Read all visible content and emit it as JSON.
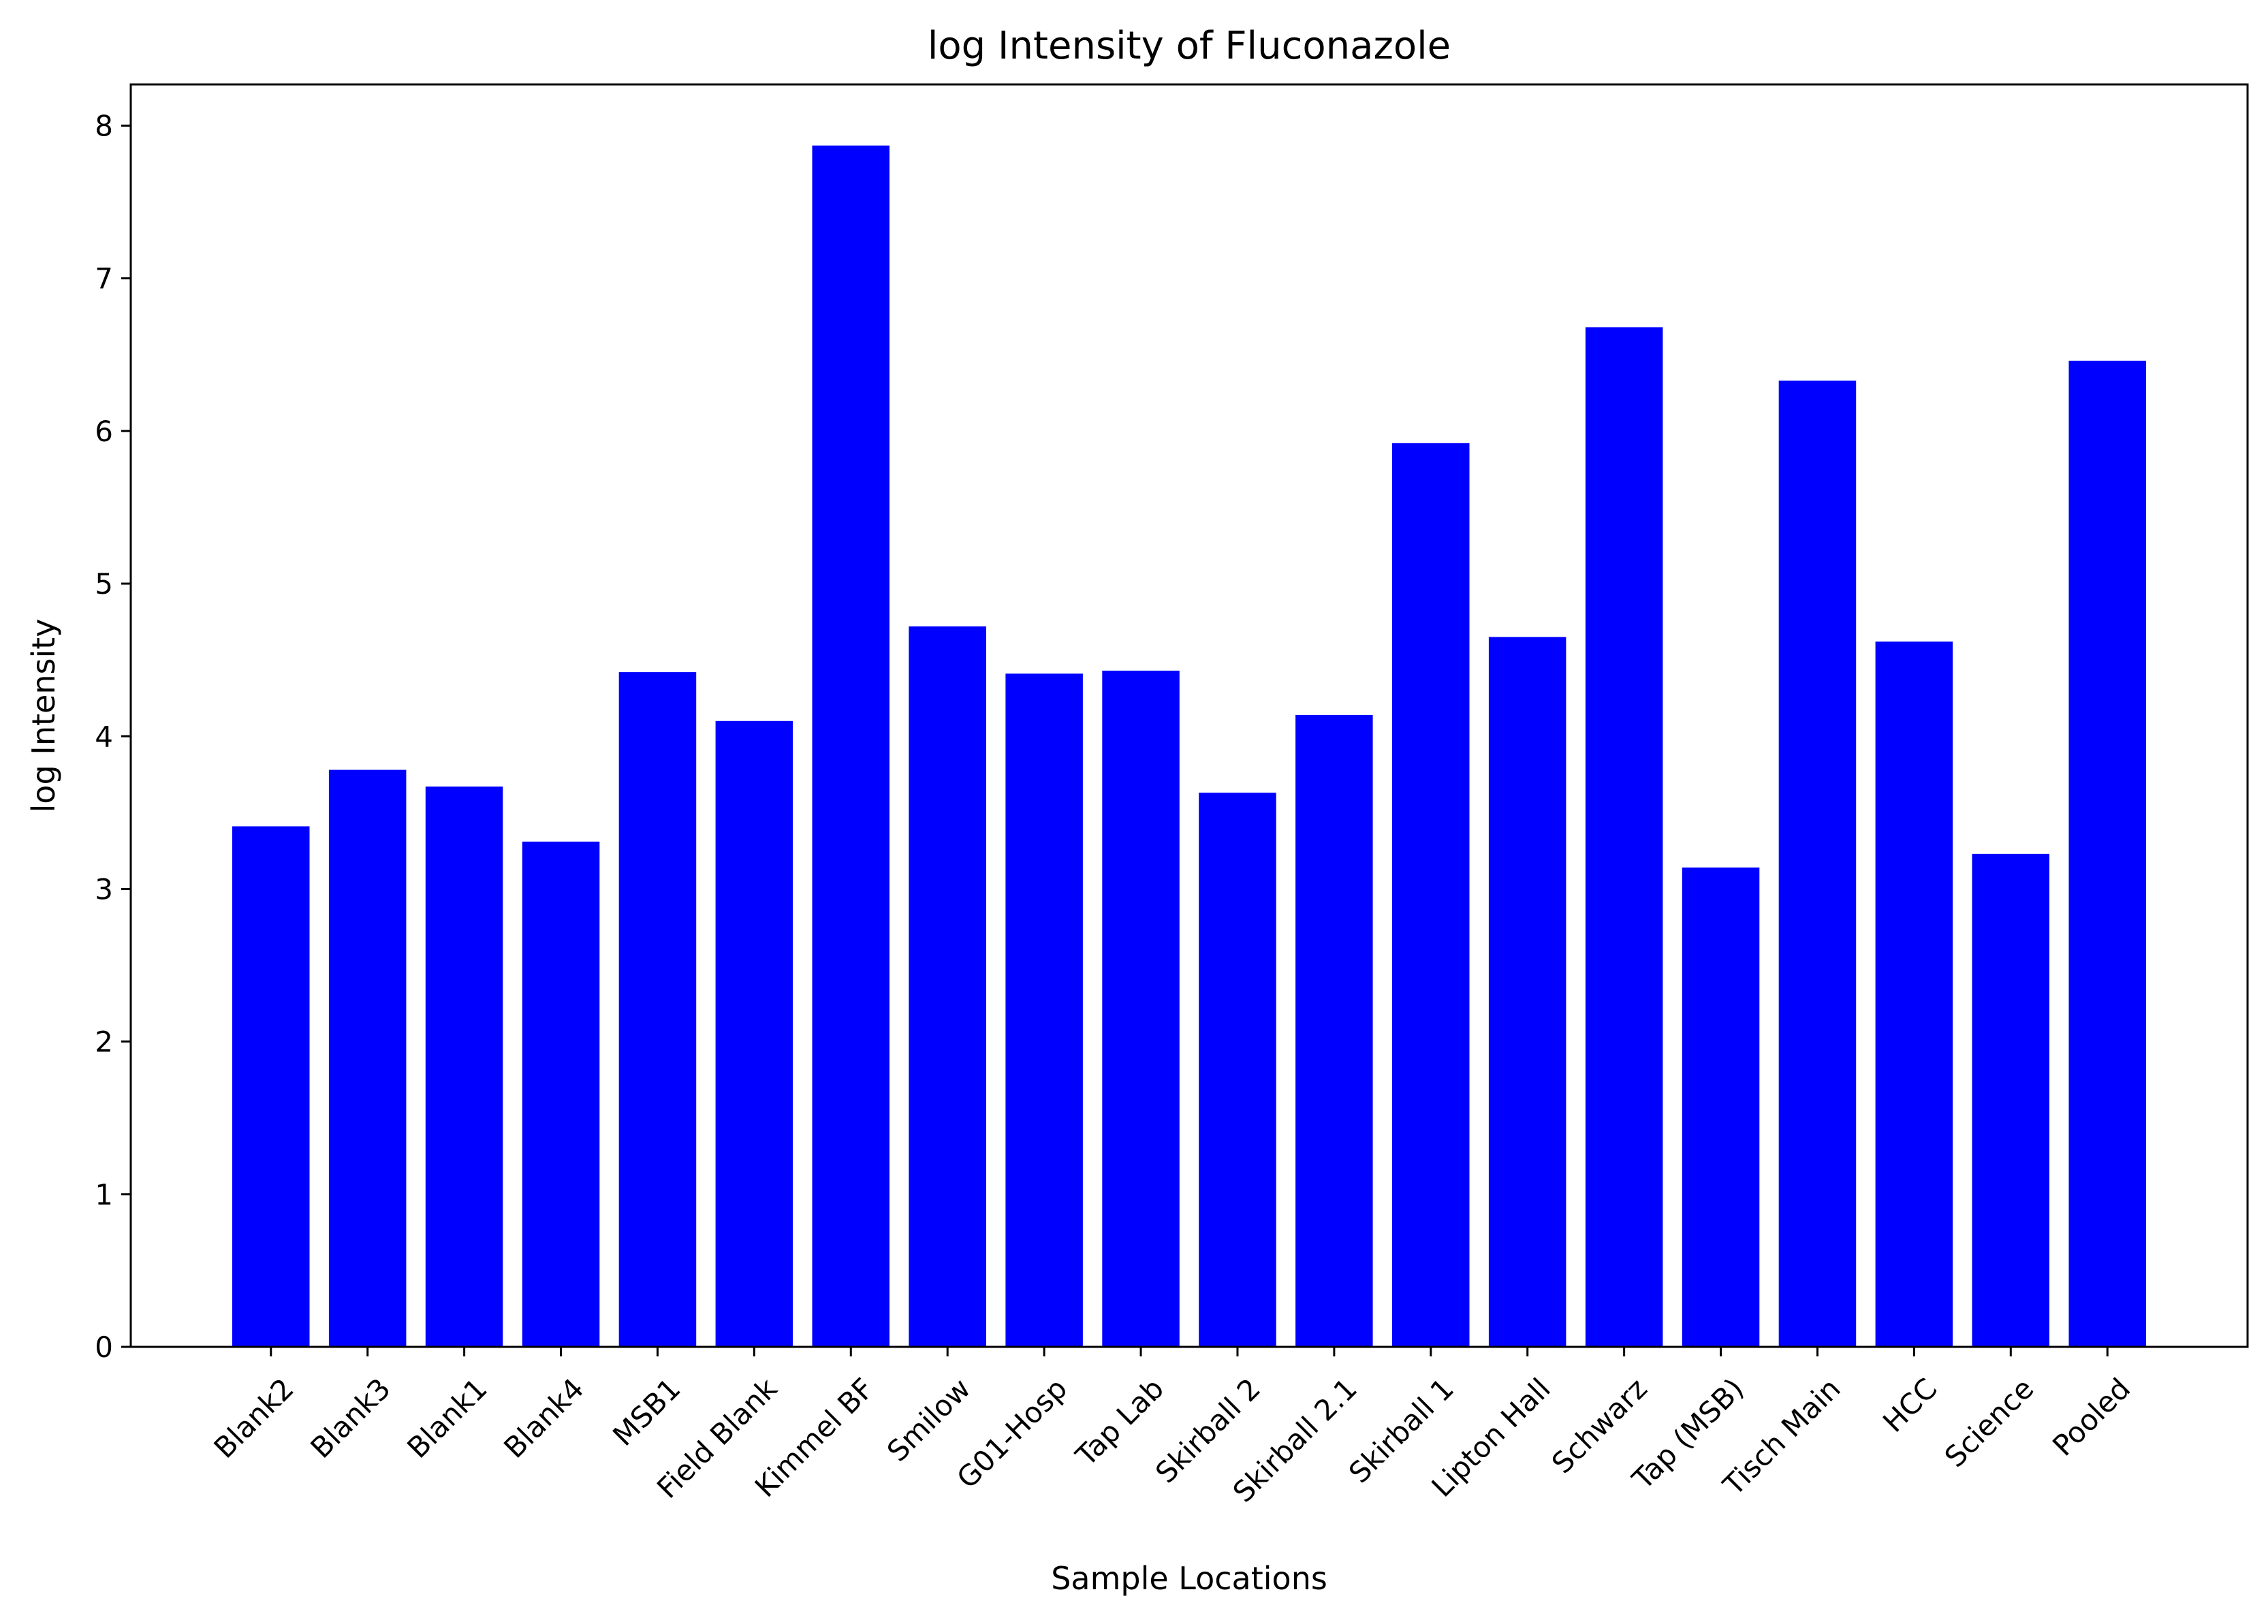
{
  "chart_data": {
    "type": "bar",
    "title": "log Intensity of Fluconazole",
    "xlabel": "Sample Locations",
    "ylabel": "log Intensity",
    "categories": [
      "Blank2",
      "Blank3",
      "Blank1",
      "Blank4",
      "MSB1",
      "Field Blank",
      "Kimmel BF",
      "Smilow",
      "G01-Hosp",
      "Tap Lab",
      "Skirball 2",
      "Skirball 2.1",
      "Skirball 1",
      "Lipton Hall",
      "Schwarz",
      "Tap (MSB)",
      "Tisch Main",
      "HCC",
      "Science",
      "Pooled"
    ],
    "values": [
      3.41,
      3.78,
      3.67,
      3.31,
      4.42,
      4.1,
      7.87,
      4.72,
      4.41,
      4.43,
      3.63,
      4.14,
      5.92,
      4.65,
      6.68,
      3.14,
      6.33,
      4.62,
      3.23,
      6.46
    ],
    "ylim": [
      0,
      8.27
    ],
    "yticks": [
      "0",
      "1",
      "2",
      "3",
      "4",
      "5",
      "6",
      "7",
      "8"
    ],
    "bar_color": "#0000ff",
    "grid": false,
    "legend": "none"
  }
}
